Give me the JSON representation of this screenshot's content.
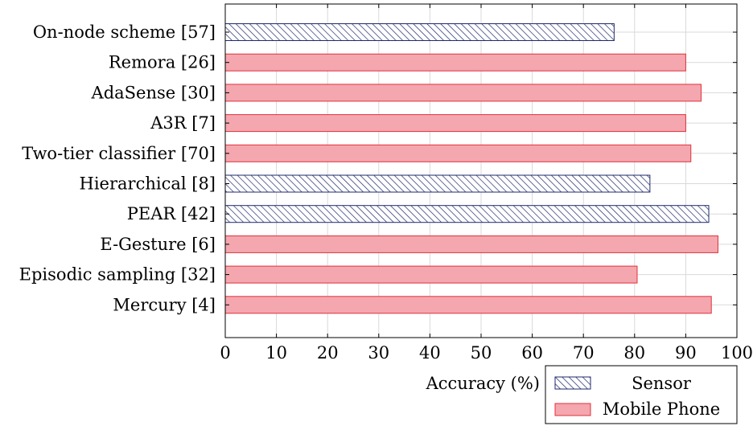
{
  "chart_data": {
    "type": "bar",
    "orientation": "horizontal",
    "xlabel": "Accuracy (%)",
    "ylabel": "",
    "xlim": [
      0,
      100
    ],
    "xticks": [
      0,
      10,
      20,
      30,
      40,
      50,
      60,
      70,
      80,
      90,
      100
    ],
    "grid": true,
    "legend_position": "bottom-right",
    "categories": [
      "On-node scheme [57]",
      "Remora [26]",
      "AdaSense [30]",
      "A3R [7]",
      "Two-tier classifier [70]",
      "Hierarchical [8]",
      "PEAR [42]",
      "E-Gesture [6]",
      "Episodic sampling [32]",
      "Mercury [4]"
    ],
    "values": [
      76,
      90,
      93,
      90,
      91,
      83,
      94.5,
      96.3,
      80.5,
      95
    ],
    "groups": [
      "Sensor",
      "Mobile Phone",
      "Mobile Phone",
      "Mobile Phone",
      "Mobile Phone",
      "Sensor",
      "Sensor",
      "Mobile Phone",
      "Mobile Phone",
      "Mobile Phone"
    ],
    "legend": [
      {
        "name": "Sensor",
        "style": "hatched",
        "color": "#1f2a6e"
      },
      {
        "name": "Mobile Phone",
        "style": "solid",
        "color": "#f4a7ae",
        "edge": "#e0313c"
      }
    ]
  }
}
